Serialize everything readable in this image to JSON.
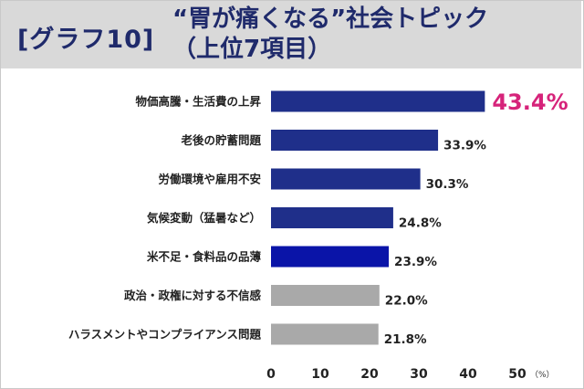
{
  "header": {
    "label": "[グラフ10]",
    "title_line1": "“胃が痛くなる”社会トピック",
    "title_line2": "（上位7項目）"
  },
  "chart_data": {
    "type": "bar",
    "orientation": "horizontal",
    "categories": [
      "物価高騰・生活費の上昇",
      "老後の貯蓄問題",
      "労働環境や雇用不安",
      "気候変動（猛暑など）",
      "米不足・食料品の品薄",
      "政治・政権に対する不信感",
      "ハラスメントやコンプライアンス問題"
    ],
    "values": [
      43.4,
      33.9,
      30.3,
      24.8,
      23.9,
      22.0,
      21.8
    ],
    "value_labels": [
      "43.4%",
      "33.9%",
      "30.3%",
      "24.8%",
      "23.9%",
      "22.0%",
      "21.8%"
    ],
    "bar_colors": [
      "#1f2f8a",
      "#1f2f8a",
      "#1f2f8a",
      "#1f2f8a",
      "#0a14a8",
      "#a9a9a9",
      "#a9a9a9"
    ],
    "highlight_color": "#d6237a",
    "xlim": [
      0,
      50
    ],
    "xticks": [
      "0",
      "10",
      "20",
      "30",
      "40",
      "50"
    ],
    "unit": "（%）",
    "grid": false
  }
}
